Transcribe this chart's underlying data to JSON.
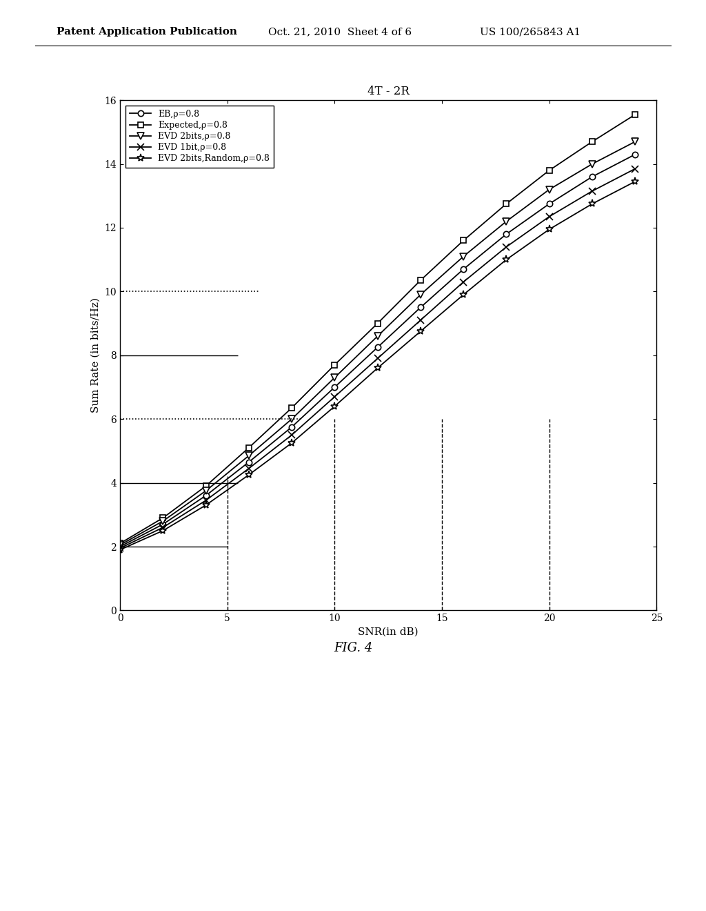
{
  "title": "4T - 2R",
  "xlabel": "SNR(in dB)",
  "ylabel": "Sum Rate (in bits/Hz)",
  "xlim": [
    0,
    25
  ],
  "ylim": [
    0,
    16
  ],
  "xticks": [
    0,
    5,
    10,
    15,
    20,
    25
  ],
  "yticks": [
    0,
    2,
    4,
    6,
    8,
    10,
    12,
    14,
    16
  ],
  "snr_values": [
    0,
    2,
    4,
    6,
    8,
    10,
    12,
    14,
    16,
    18,
    20,
    22,
    24
  ],
  "series": {
    "Expected": {
      "label": "Expected,ρ=0.8",
      "marker": "s",
      "markersize": 6,
      "linewidth": 1.3,
      "values": [
        2.1,
        2.9,
        3.9,
        5.1,
        6.35,
        7.7,
        9.0,
        10.35,
        11.6,
        12.75,
        13.8,
        14.7,
        15.55
      ]
    },
    "EVD2bits": {
      "label": "EVD 2bits,ρ=0.8",
      "marker": "v",
      "markersize": 7,
      "linewidth": 1.3,
      "values": [
        2.05,
        2.8,
        3.75,
        4.85,
        6.0,
        7.3,
        8.6,
        9.9,
        11.1,
        12.2,
        13.2,
        14.0,
        14.7
      ]
    },
    "EB": {
      "label": "EB,ρ=0.8",
      "marker": "o",
      "markersize": 6,
      "linewidth": 1.3,
      "values": [
        2.0,
        2.7,
        3.6,
        4.65,
        5.75,
        7.0,
        8.25,
        9.5,
        10.7,
        11.8,
        12.75,
        13.6,
        14.3
      ]
    },
    "EVD1bit": {
      "label": "EVD 1bit,ρ=0.8",
      "marker": "x",
      "markersize": 7,
      "linewidth": 1.3,
      "values": [
        1.95,
        2.6,
        3.45,
        4.45,
        5.5,
        6.7,
        7.9,
        9.1,
        10.3,
        11.4,
        12.35,
        13.15,
        13.85
      ]
    },
    "EVD2bitsRandom": {
      "label": "EVD 2bits,Random,ρ=0.8",
      "marker": "*",
      "markersize": 8,
      "linewidth": 1.3,
      "values": [
        1.9,
        2.5,
        3.3,
        4.25,
        5.25,
        6.4,
        7.6,
        8.75,
        9.9,
        11.0,
        11.95,
        12.75,
        13.45
      ]
    }
  },
  "hlines": [
    {
      "y": 10,
      "xmin": 0,
      "xmax": 6.5,
      "linestyle": "dotted",
      "color": "#000000",
      "linewidth": 1.2
    },
    {
      "y": 8,
      "xmin": 0,
      "xmax": 5.5,
      "linestyle": "solid",
      "color": "#000000",
      "linewidth": 1.0
    },
    {
      "y": 6,
      "xmin": 0,
      "xmax": 8.5,
      "linestyle": "dotted",
      "color": "#000000",
      "linewidth": 1.2
    },
    {
      "y": 4,
      "xmin": 0,
      "xmax": 5.5,
      "linestyle": "solid",
      "color": "#000000",
      "linewidth": 1.0
    },
    {
      "y": 2,
      "xmin": 0,
      "xmax": 5.0,
      "linestyle": "solid",
      "color": "#000000",
      "linewidth": 1.0
    }
  ],
  "vlines": [
    {
      "x": 5,
      "ymin": 0,
      "ymax": 4.2,
      "linestyle": "dashed",
      "color": "#000000",
      "linewidth": 1.0
    },
    {
      "x": 10,
      "ymin": 0,
      "ymax": 6.0,
      "linestyle": "dashed",
      "color": "#000000",
      "linewidth": 1.0
    },
    {
      "x": 15,
      "ymin": 0,
      "ymax": 6.0,
      "linestyle": "dashed",
      "color": "#000000",
      "linewidth": 1.0
    },
    {
      "x": 20,
      "ymin": 0,
      "ymax": 6.0,
      "linestyle": "dashed",
      "color": "#000000",
      "linewidth": 1.0
    }
  ],
  "header_left": "Patent Application Publication",
  "header_mid": "Oct. 21, 2010  Sheet 4 of 6",
  "header_right": "US 100/265843 A1",
  "fig_caption": "FIG. 4",
  "background_color": "#ffffff",
  "plot_bg_color": "#ffffff",
  "border_color": "#000000"
}
